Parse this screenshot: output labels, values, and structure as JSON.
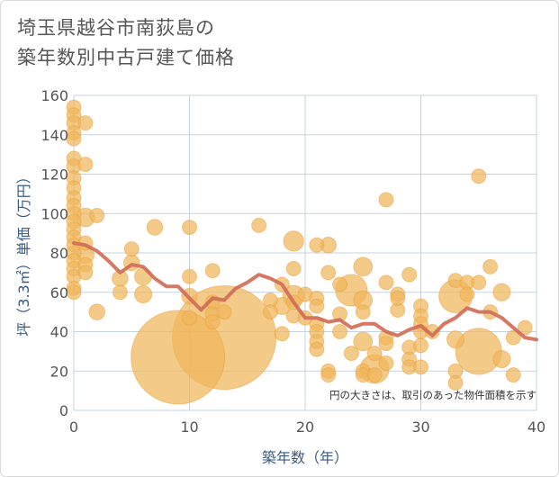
{
  "title_lines": [
    "埼玉県越谷市南荻島の",
    "築年数別中古戸建て価格"
  ],
  "colors": {
    "bubble_fill": "#f0b55b",
    "bubble_stroke": "#e8a23c",
    "trend_line": "#d06a55",
    "grid": "#c5d3e0",
    "axis_text": "#555555",
    "axis_title": "#3a5a80"
  },
  "chart_data": {
    "type": "scatter",
    "title": "埼玉県越谷市南荻島の築年数別中古戸建て価格",
    "xlabel": "築年数（年）",
    "ylabel": "坪（3.3㎡）単価（万円）",
    "xlim": [
      0,
      40
    ],
    "ylim": [
      0,
      160
    ],
    "x_ticks": [
      0,
      10,
      20,
      30,
      40
    ],
    "y_ticks": [
      0,
      20,
      40,
      60,
      80,
      100,
      120,
      140,
      160
    ],
    "grid": true,
    "annotation": "円の大きさは、取引のあった物件面積を示す",
    "points": [
      {
        "x": 0,
        "y": 154,
        "s": 1
      },
      {
        "x": 0,
        "y": 150,
        "s": 1
      },
      {
        "x": 0,
        "y": 146,
        "s": 1
      },
      {
        "x": 0,
        "y": 141,
        "s": 1
      },
      {
        "x": 0,
        "y": 138,
        "s": 1
      },
      {
        "x": 0,
        "y": 128,
        "s": 1
      },
      {
        "x": 0,
        "y": 124,
        "s": 1
      },
      {
        "x": 0,
        "y": 118,
        "s": 1
      },
      {
        "x": 0,
        "y": 113,
        "s": 1
      },
      {
        "x": 0,
        "y": 108,
        "s": 1
      },
      {
        "x": 0,
        "y": 104,
        "s": 1
      },
      {
        "x": 0,
        "y": 100,
        "s": 1
      },
      {
        "x": 0,
        "y": 96,
        "s": 1
      },
      {
        "x": 0,
        "y": 92,
        "s": 1
      },
      {
        "x": 0,
        "y": 88,
        "s": 1
      },
      {
        "x": 0,
        "y": 84,
        "s": 1
      },
      {
        "x": 0,
        "y": 80,
        "s": 1
      },
      {
        "x": 0,
        "y": 76,
        "s": 1
      },
      {
        "x": 0,
        "y": 72,
        "s": 1
      },
      {
        "x": 0,
        "y": 68,
        "s": 1
      },
      {
        "x": 0,
        "y": 62,
        "s": 1
      },
      {
        "x": 0,
        "y": 60,
        "s": 1
      },
      {
        "x": 1,
        "y": 146,
        "s": 1
      },
      {
        "x": 1,
        "y": 125,
        "s": 1
      },
      {
        "x": 1,
        "y": 98,
        "s": 1.3
      },
      {
        "x": 1,
        "y": 85,
        "s": 1
      },
      {
        "x": 1,
        "y": 79,
        "s": 1.2
      },
      {
        "x": 1,
        "y": 74,
        "s": 1
      },
      {
        "x": 1,
        "y": 70,
        "s": 1
      },
      {
        "x": 2,
        "y": 99,
        "s": 1
      },
      {
        "x": 2,
        "y": 50,
        "s": 1.1
      },
      {
        "x": 4,
        "y": 67,
        "s": 1.1
      },
      {
        "x": 4,
        "y": 60,
        "s": 1
      },
      {
        "x": 5,
        "y": 82,
        "s": 1
      },
      {
        "x": 5,
        "y": 75,
        "s": 1.1
      },
      {
        "x": 6,
        "y": 68,
        "s": 1.2
      },
      {
        "x": 6,
        "y": 59,
        "s": 1.2
      },
      {
        "x": 7,
        "y": 93,
        "s": 1.1
      },
      {
        "x": 9,
        "y": 27,
        "s": 6.5
      },
      {
        "x": 10,
        "y": 93,
        "s": 1
      },
      {
        "x": 10,
        "y": 68,
        "s": 1
      },
      {
        "x": 10,
        "y": 58,
        "s": 1.1
      },
      {
        "x": 10,
        "y": 47,
        "s": 1
      },
      {
        "x": 12,
        "y": 71,
        "s": 1
      },
      {
        "x": 12,
        "y": 55,
        "s": 1
      },
      {
        "x": 12,
        "y": 49,
        "s": 1
      },
      {
        "x": 12,
        "y": 45,
        "s": 1
      },
      {
        "x": 13,
        "y": 37,
        "s": 7.2
      },
      {
        "x": 13,
        "y": 50,
        "s": 1
      },
      {
        "x": 16,
        "y": 94,
        "s": 1
      },
      {
        "x": 17,
        "y": 56,
        "s": 1
      },
      {
        "x": 17,
        "y": 50,
        "s": 1
      },
      {
        "x": 18,
        "y": 39,
        "s": 1
      },
      {
        "x": 18,
        "y": 53,
        "s": 1.2
      },
      {
        "x": 18,
        "y": 64,
        "s": 1
      },
      {
        "x": 19,
        "y": 86,
        "s": 1.4
      },
      {
        "x": 19,
        "y": 72,
        "s": 1
      },
      {
        "x": 19,
        "y": 58,
        "s": 1.5
      },
      {
        "x": 19,
        "y": 55,
        "s": 1
      },
      {
        "x": 19,
        "y": 48,
        "s": 1
      },
      {
        "x": 20,
        "y": 59,
        "s": 1
      },
      {
        "x": 20,
        "y": 47,
        "s": 1
      },
      {
        "x": 21,
        "y": 84,
        "s": 1
      },
      {
        "x": 21,
        "y": 57,
        "s": 1
      },
      {
        "x": 21,
        "y": 53,
        "s": 1
      },
      {
        "x": 21,
        "y": 44,
        "s": 1
      },
      {
        "x": 21,
        "y": 40,
        "s": 1
      },
      {
        "x": 21,
        "y": 35,
        "s": 1
      },
      {
        "x": 21,
        "y": 31,
        "s": 1
      },
      {
        "x": 22,
        "y": 84,
        "s": 1.1
      },
      {
        "x": 22,
        "y": 70,
        "s": 1
      },
      {
        "x": 22,
        "y": 20,
        "s": 1
      },
      {
        "x": 22,
        "y": 18,
        "s": 1
      },
      {
        "x": 23,
        "y": 64,
        "s": 1
      },
      {
        "x": 23,
        "y": 49,
        "s": 1
      },
      {
        "x": 23,
        "y": 40,
        "s": 1
      },
      {
        "x": 24,
        "y": 61,
        "s": 2.2
      },
      {
        "x": 24,
        "y": 29,
        "s": 1
      },
      {
        "x": 25,
        "y": 73,
        "s": 1.3
      },
      {
        "x": 25,
        "y": 56,
        "s": 1.3
      },
      {
        "x": 25,
        "y": 50,
        "s": 1
      },
      {
        "x": 25,
        "y": 35,
        "s": 1.3
      },
      {
        "x": 25,
        "y": 20,
        "s": 1
      },
      {
        "x": 25,
        "y": 18,
        "s": 1
      },
      {
        "x": 26,
        "y": 21,
        "s": 2
      },
      {
        "x": 26,
        "y": 29,
        "s": 1
      },
      {
        "x": 26,
        "y": 18,
        "s": 1
      },
      {
        "x": 27,
        "y": 107,
        "s": 1
      },
      {
        "x": 27,
        "y": 65,
        "s": 1
      },
      {
        "x": 27,
        "y": 37,
        "s": 1
      },
      {
        "x": 27,
        "y": 34,
        "s": 1
      },
      {
        "x": 27,
        "y": 24,
        "s": 1
      },
      {
        "x": 28,
        "y": 59,
        "s": 1
      },
      {
        "x": 28,
        "y": 51,
        "s": 1
      },
      {
        "x": 28,
        "y": 57,
        "s": 1
      },
      {
        "x": 29,
        "y": 69,
        "s": 1
      },
      {
        "x": 29,
        "y": 32,
        "s": 1
      },
      {
        "x": 29,
        "y": 26,
        "s": 1
      },
      {
        "x": 29,
        "y": 22,
        "s": 1
      },
      {
        "x": 30,
        "y": 53,
        "s": 1
      },
      {
        "x": 30,
        "y": 48,
        "s": 1
      },
      {
        "x": 30,
        "y": 44,
        "s": 1
      },
      {
        "x": 30,
        "y": 40,
        "s": 1
      },
      {
        "x": 30,
        "y": 33,
        "s": 1
      },
      {
        "x": 30,
        "y": 22,
        "s": 1
      },
      {
        "x": 31,
        "y": 40,
        "s": 1
      },
      {
        "x": 33,
        "y": 66,
        "s": 1
      },
      {
        "x": 33,
        "y": 58,
        "s": 2.3
      },
      {
        "x": 33,
        "y": 36,
        "s": 1.2
      },
      {
        "x": 33,
        "y": 20,
        "s": 1
      },
      {
        "x": 33,
        "y": 14,
        "s": 1
      },
      {
        "x": 34,
        "y": 65,
        "s": 1
      },
      {
        "x": 34,
        "y": 59,
        "s": 1
      },
      {
        "x": 35,
        "y": 119,
        "s": 1
      },
      {
        "x": 35,
        "y": 65,
        "s": 1
      },
      {
        "x": 35,
        "y": 30,
        "s": 3.2
      },
      {
        "x": 36,
        "y": 73,
        "s": 1
      },
      {
        "x": 36,
        "y": 50,
        "s": 1
      },
      {
        "x": 37,
        "y": 60,
        "s": 1.2
      },
      {
        "x": 37,
        "y": 26,
        "s": 1.2
      },
      {
        "x": 38,
        "y": 37,
        "s": 1
      },
      {
        "x": 38,
        "y": 18,
        "s": 1
      },
      {
        "x": 39,
        "y": 42,
        "s": 1
      }
    ],
    "trend": {
      "x": [
        0,
        1,
        2,
        3,
        4,
        5,
        6,
        7,
        8,
        9,
        10,
        11,
        12,
        13,
        14,
        15,
        16,
        17,
        18,
        19,
        20,
        21,
        22,
        23,
        24,
        25,
        26,
        27,
        28,
        29,
        30,
        31,
        32,
        33,
        34,
        35,
        36,
        37,
        38,
        39,
        40
      ],
      "y": [
        85,
        84,
        81,
        76,
        70,
        74,
        73,
        67,
        63,
        63,
        57,
        51,
        57,
        56,
        62,
        65,
        69,
        67,
        64,
        55,
        47,
        47,
        45,
        46,
        42,
        44,
        44,
        40,
        38,
        41,
        43,
        38,
        44,
        47,
        52,
        50,
        50,
        47,
        42,
        37,
        36
      ]
    }
  }
}
